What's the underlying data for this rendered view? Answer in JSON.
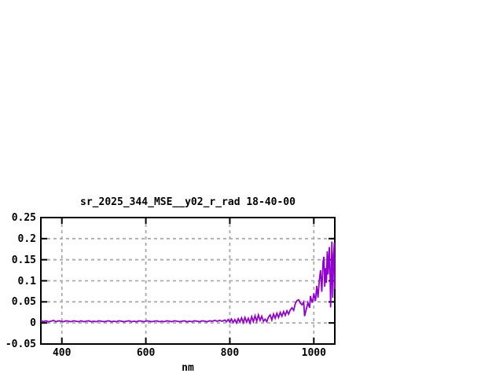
{
  "colors": {
    "line": "#9400d3",
    "grid": "#aaaaaa",
    "frame": "#000000",
    "text": "#000000",
    "background": "#ffffff"
  },
  "chart_data": {
    "type": "line",
    "title": "sr_2025_344_MSE__y02_r_rad 18-40-00",
    "xlabel": "nm",
    "ylabel": "",
    "xlim": [
      350,
      1050
    ],
    "ylim": [
      -0.05,
      0.25
    ],
    "grid": "dashed",
    "legend_position": "none",
    "xticks": [
      {
        "value": 400,
        "label": "400"
      },
      {
        "value": 600,
        "label": "600"
      },
      {
        "value": 800,
        "label": "800"
      },
      {
        "value": 1000,
        "label": "1000"
      }
    ],
    "yticks": [
      {
        "value": -0.05,
        "label": "-0.05"
      },
      {
        "value": 0,
        "label": "0"
      },
      {
        "value": 0.05,
        "label": "0.05"
      },
      {
        "value": 0.1,
        "label": "0.1"
      },
      {
        "value": 0.15,
        "label": "0.15"
      },
      {
        "value": 0.2,
        "label": "0.2"
      },
      {
        "value": 0.25,
        "label": "0.25"
      }
    ],
    "series": [
      {
        "name": "sr_2025_344_MSE__y02_r_rad",
        "color": "#9400d3",
        "points": [
          [
            350,
            0.006
          ],
          [
            356,
            0.003
          ],
          [
            362,
            0.005
          ],
          [
            368,
            0.003
          ],
          [
            374,
            0.004
          ],
          [
            380,
            0.006
          ],
          [
            386,
            0.003
          ],
          [
            392,
            0.005
          ],
          [
            398,
            0.004
          ],
          [
            404,
            0.003
          ],
          [
            410,
            0.005
          ],
          [
            416,
            0.004
          ],
          [
            422,
            0.003
          ],
          [
            428,
            0.005
          ],
          [
            434,
            0.004
          ],
          [
            440,
            0.003
          ],
          [
            446,
            0.005
          ],
          [
            452,
            0.003
          ],
          [
            458,
            0.004
          ],
          [
            464,
            0.005
          ],
          [
            470,
            0.003
          ],
          [
            476,
            0.004
          ],
          [
            482,
            0.003
          ],
          [
            488,
            0.005
          ],
          [
            494,
            0.004
          ],
          [
            500,
            0.003
          ],
          [
            506,
            0.004
          ],
          [
            512,
            0.005
          ],
          [
            518,
            0.003
          ],
          [
            524,
            0.004
          ],
          [
            530,
            0.003
          ],
          [
            536,
            0.005
          ],
          [
            542,
            0.004
          ],
          [
            548,
            0.003
          ],
          [
            554,
            0.004
          ],
          [
            560,
            0.005
          ],
          [
            566,
            0.003
          ],
          [
            572,
            0.004
          ],
          [
            578,
            0.003
          ],
          [
            584,
            0.005
          ],
          [
            590,
            0.004
          ],
          [
            596,
            0.003
          ],
          [
            602,
            0.005
          ],
          [
            608,
            0.004
          ],
          [
            614,
            0.003
          ],
          [
            620,
            0.004
          ],
          [
            626,
            0.005
          ],
          [
            632,
            0.003
          ],
          [
            638,
            0.004
          ],
          [
            644,
            0.003
          ],
          [
            650,
            0.005
          ],
          [
            656,
            0.004
          ],
          [
            662,
            0.003
          ],
          [
            668,
            0.005
          ],
          [
            674,
            0.004
          ],
          [
            680,
            0.003
          ],
          [
            686,
            0.004
          ],
          [
            692,
            0.005
          ],
          [
            698,
            0.003
          ],
          [
            704,
            0.004
          ],
          [
            710,
            0.003
          ],
          [
            716,
            0.005
          ],
          [
            722,
            0.004
          ],
          [
            728,
            0.003
          ],
          [
            734,
            0.005
          ],
          [
            740,
            0.004
          ],
          [
            746,
            0.003
          ],
          [
            752,
            0.005
          ],
          [
            758,
            0.004
          ],
          [
            764,
            0.006
          ],
          [
            770,
            0.004
          ],
          [
            776,
            0.006
          ],
          [
            782,
            0.004
          ],
          [
            788,
            0.007
          ],
          [
            792,
            0.003
          ],
          [
            796,
            0.008
          ],
          [
            800,
            0.002
          ],
          [
            804,
            0.009
          ],
          [
            808,
            0.001
          ],
          [
            812,
            0.008
          ],
          [
            816,
            0
          ],
          [
            820,
            0.01
          ],
          [
            824,
            0.002
          ],
          [
            828,
            0.012
          ],
          [
            832,
            0.001
          ],
          [
            836,
            0.013
          ],
          [
            840,
            0.002
          ],
          [
            844,
            0.011
          ],
          [
            848,
            0
          ],
          [
            852,
            0.015
          ],
          [
            856,
            0.003
          ],
          [
            860,
            0.017
          ],
          [
            864,
            0.004
          ],
          [
            868,
            0.019
          ],
          [
            872,
            0.006
          ],
          [
            876,
            0.016
          ],
          [
            880,
            0.004
          ],
          [
            884,
            0.009
          ],
          [
            888,
            0.003
          ],
          [
            892,
            0.014
          ],
          [
            896,
            0.019
          ],
          [
            900,
            0.007
          ],
          [
            904,
            0.021
          ],
          [
            908,
            0.011
          ],
          [
            912,
            0.023
          ],
          [
            916,
            0.013
          ],
          [
            920,
            0.025
          ],
          [
            924,
            0.016
          ],
          [
            928,
            0.027
          ],
          [
            932,
            0.018
          ],
          [
            936,
            0.029
          ],
          [
            940,
            0.021
          ],
          [
            944,
            0.031
          ],
          [
            948,
            0.036
          ],
          [
            952,
            0.03
          ],
          [
            956,
            0.046
          ],
          [
            960,
            0.053
          ],
          [
            964,
            0.055
          ],
          [
            968,
            0.047
          ],
          [
            972,
            0.043
          ],
          [
            976,
            0.05
          ],
          [
            978,
            0.016
          ],
          [
            982,
            0.032
          ],
          [
            986,
            0.048
          ],
          [
            990,
            0.036
          ],
          [
            992,
            0.064
          ],
          [
            996,
            0.048
          ],
          [
            998,
            0.056
          ],
          [
            1000,
            0.07
          ],
          [
            1004,
            0.052
          ],
          [
            1007,
            0.088
          ],
          [
            1010,
            0.06
          ],
          [
            1013,
            0.1
          ],
          [
            1016,
            0.125
          ],
          [
            1019,
            0.074
          ],
          [
            1022,
            0.145
          ],
          [
            1024,
            0.157
          ],
          [
            1026,
            0.086
          ],
          [
            1028,
            0.13
          ],
          [
            1030,
            0.095
          ],
          [
            1032,
            0.17
          ],
          [
            1034,
            0.115
          ],
          [
            1037,
            0.18
          ],
          [
            1039,
            0.1
          ],
          [
            1040,
            0.037
          ],
          [
            1043,
            0.193
          ],
          [
            1045,
            0.06
          ],
          [
            1047,
            0.16
          ],
          [
            1049,
            0.19
          ],
          [
            1050,
            0.08
          ]
        ]
      }
    ]
  }
}
